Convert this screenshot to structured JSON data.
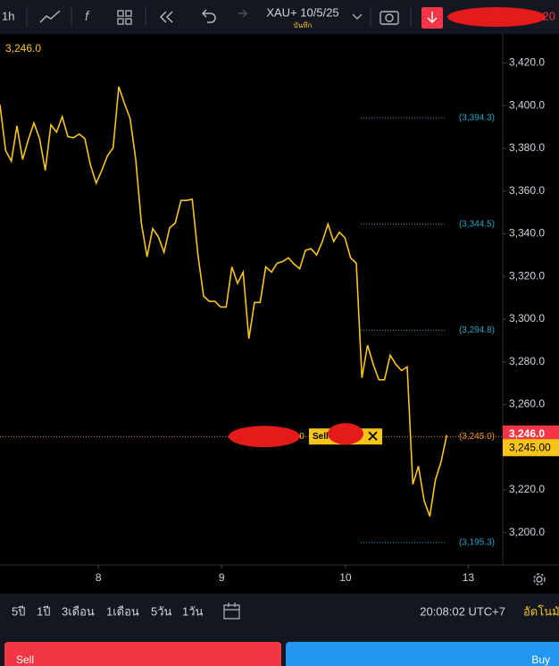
{
  "toolbar": {
    "interval": "1h",
    "symbol": "XAU+ 10/5/25",
    "save": "บันทึก",
    "account": "20"
  },
  "header_price": "3,246.0",
  "chart_data": {
    "type": "line",
    "series": [
      {
        "name": "XAU+",
        "color": "#f7c518",
        "x": [
          0,
          1,
          2,
          3,
          4,
          5,
          6,
          7,
          8,
          9,
          10,
          11,
          12,
          13,
          14,
          15,
          16,
          17,
          18,
          19,
          20,
          21,
          22,
          23,
          24,
          25,
          26,
          27,
          28,
          29,
          30,
          31,
          32,
          33,
          34,
          35,
          36,
          37,
          38,
          39,
          40,
          41,
          42,
          43,
          44,
          45,
          46,
          47,
          48,
          49,
          50,
          51,
          52,
          53,
          54,
          55,
          56,
          57,
          58,
          59,
          60,
          61,
          62,
          63,
          64,
          65,
          66,
          67,
          68,
          69,
          70,
          71,
          72,
          73,
          74,
          75,
          76,
          77,
          78,
          79
        ],
        "values": [
          3400.4,
          3379.0,
          3374.0,
          3390.6,
          3374.8,
          3384.0,
          3391.9,
          3384.6,
          3369.7,
          3391.0,
          3387.6,
          3394.8,
          3385.5,
          3385.0,
          3386.7,
          3384.6,
          3372.2,
          3363.7,
          3369.7,
          3376.5,
          3380.3,
          3408.9,
          3401.2,
          3394.0,
          3374.8,
          3345.0,
          3329.2,
          3342.4,
          3338.6,
          3331.3,
          3342.8,
          3345.0,
          3355.6,
          3355.6,
          3356.1,
          3330.0,
          3310.8,
          3308.3,
          3308.3,
          3305.7,
          3305.7,
          3324.5,
          3316.8,
          3322.0,
          3290.8,
          3307.8,
          3307.8,
          3324.5,
          3322.0,
          3326.2,
          3327.0,
          3328.7,
          3325.8,
          3323.6,
          3332.2,
          3333.0,
          3330.0,
          3336.4,
          3344.5,
          3336.4,
          3340.7,
          3338.1,
          3328.7,
          3326.2,
          3272.5,
          3287.8,
          3278.8,
          3271.6,
          3271.6,
          3283.1,
          3278.8,
          3275.9,
          3277.6,
          3222.6,
          3231.1,
          3214.9,
          3207.6,
          3224.7,
          3233.2,
          3245.6
        ]
      }
    ],
    "xlim": [
      0,
      88.9
    ],
    "xticks": [
      {
        "value": 17.4,
        "label": "8"
      },
      {
        "value": 39.2,
        "label": "9"
      },
      {
        "value": 61.1,
        "label": "10"
      },
      {
        "value": 82.8,
        "label": "13"
      }
    ],
    "ylim": [
      3184.8,
      3433.6
    ],
    "yticks": [
      {
        "value": 3200,
        "label": "3,200.0"
      },
      {
        "value": 3220,
        "label": "3,220.0"
      },
      {
        "value": 3240,
        "label": "3,240.0"
      },
      {
        "value": 3260,
        "label": "3,260.0"
      },
      {
        "value": 3280,
        "label": "3,280.0"
      },
      {
        "value": 3300,
        "label": "3,300.0"
      },
      {
        "value": 3320,
        "label": "3,320.0"
      },
      {
        "value": 3340,
        "label": "3,340.0"
      },
      {
        "value": 3360,
        "label": "3,360.0"
      },
      {
        "value": 3380,
        "label": "3,380.0"
      },
      {
        "value": 3400,
        "label": "3,400.0"
      },
      {
        "value": 3420,
        "label": "3,420.0"
      }
    ],
    "levels": [
      {
        "value": 3394.3,
        "label": "(3,394.3)"
      },
      {
        "value": 3344.5,
        "label": "(3,344.5)"
      },
      {
        "value": 3294.8,
        "label": "(3,294.8)"
      },
      {
        "value": 3195.3,
        "label": "(3,195.3)"
      }
    ],
    "position": {
      "value": 3245.0,
      "label": "(3,245.0)",
      "qty": "0",
      "side": "Sell"
    },
    "last_price": {
      "value": 3246.0,
      "label": "3,246.0"
    },
    "bid_price": {
      "value": 3245.0,
      "label": "3,245.00"
    }
  },
  "bottom_bar": {
    "ranges": [
      "5ปี",
      "1ปี",
      "3เดือน",
      "1เดือน",
      "5วัน",
      "1วัน"
    ],
    "clock": "20:08:02 UTC+7",
    "auto": "อัตโนมัติ"
  },
  "buttons": {
    "sell": "Sell",
    "buy": "Buy"
  }
}
